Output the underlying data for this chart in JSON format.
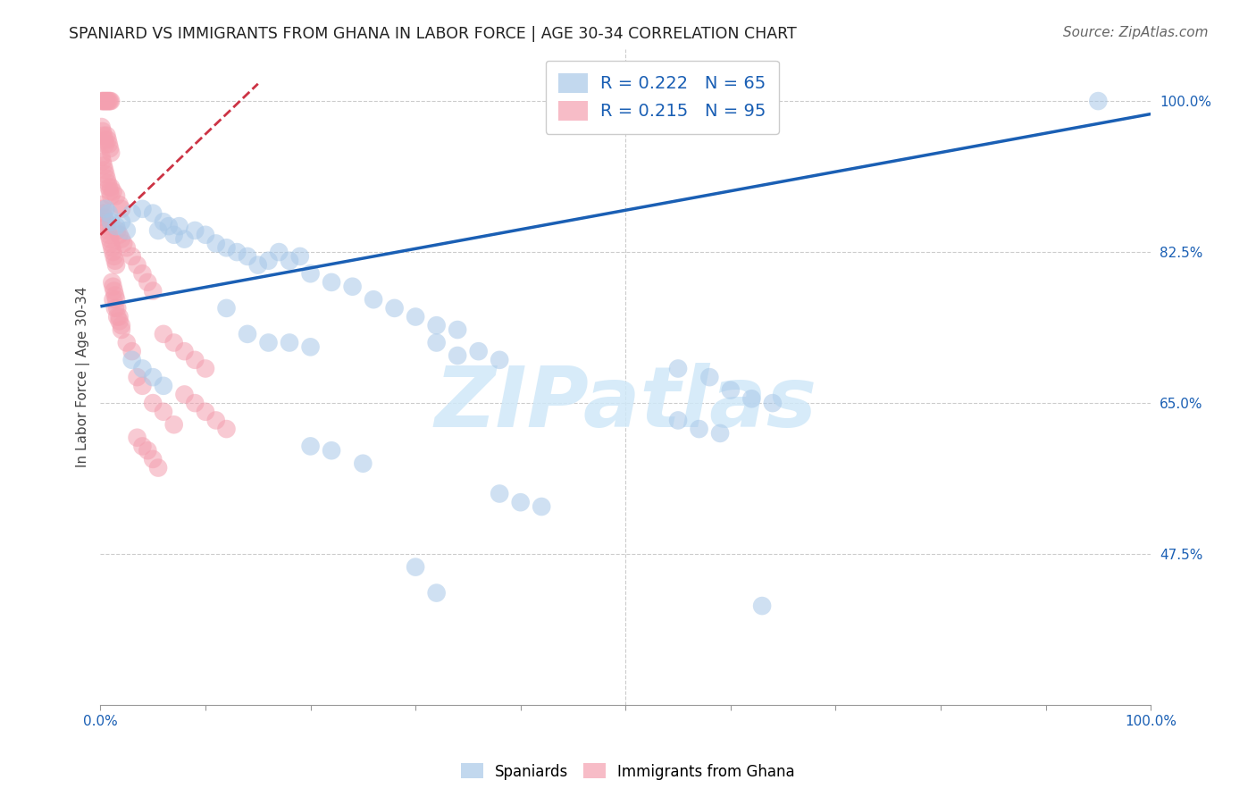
{
  "title": "SPANIARD VS IMMIGRANTS FROM GHANA IN LABOR FORCE | AGE 30-34 CORRELATION CHART",
  "source": "Source: ZipAtlas.com",
  "ylabel": "In Labor Force | Age 30-34",
  "xlim": [
    0.0,
    1.0
  ],
  "ylim": [
    0.3,
    1.06
  ],
  "yticks": [
    0.475,
    0.65,
    0.825,
    1.0
  ],
  "ytick_labels": [
    "47.5%",
    "65.0%",
    "82.5%",
    "100.0%"
  ],
  "xtick_positions": [
    0.0,
    0.1,
    0.2,
    0.3,
    0.4,
    0.5,
    0.6,
    0.7,
    0.8,
    0.9,
    1.0
  ],
  "watermark_text": "ZIPatlas",
  "spaniards_color": "#a8c8e8",
  "ghana_color": "#f4a0b0",
  "trend_spaniards_color": "#1a5fb4",
  "trend_ghana_color": "#cc3344",
  "spaniards_x": [
    0.005,
    0.008,
    0.01,
    0.015,
    0.02,
    0.025,
    0.03,
    0.04,
    0.05,
    0.055,
    0.06,
    0.065,
    0.07,
    0.075,
    0.08,
    0.09,
    0.1,
    0.11,
    0.12,
    0.13,
    0.14,
    0.15,
    0.16,
    0.17,
    0.18,
    0.19,
    0.2,
    0.22,
    0.24,
    0.26,
    0.28,
    0.3,
    0.32,
    0.34,
    0.12,
    0.14,
    0.16,
    0.18,
    0.2,
    0.32,
    0.34,
    0.36,
    0.38,
    0.55,
    0.58,
    0.6,
    0.62,
    0.64,
    0.55,
    0.57,
    0.59,
    0.03,
    0.04,
    0.05,
    0.06,
    0.2,
    0.22,
    0.25,
    0.38,
    0.4,
    0.42,
    0.3,
    0.32,
    0.63,
    0.95
  ],
  "spaniards_y": [
    0.875,
    0.87,
    0.86,
    0.855,
    0.86,
    0.85,
    0.87,
    0.875,
    0.87,
    0.85,
    0.86,
    0.855,
    0.845,
    0.855,
    0.84,
    0.85,
    0.845,
    0.835,
    0.83,
    0.825,
    0.82,
    0.81,
    0.815,
    0.825,
    0.815,
    0.82,
    0.8,
    0.79,
    0.785,
    0.77,
    0.76,
    0.75,
    0.74,
    0.735,
    0.76,
    0.73,
    0.72,
    0.72,
    0.715,
    0.72,
    0.705,
    0.71,
    0.7,
    0.69,
    0.68,
    0.665,
    0.655,
    0.65,
    0.63,
    0.62,
    0.615,
    0.7,
    0.69,
    0.68,
    0.67,
    0.6,
    0.595,
    0.58,
    0.545,
    0.535,
    0.53,
    0.46,
    0.43,
    0.415,
    1.0
  ],
  "ghana_x": [
    0.001,
    0.002,
    0.003,
    0.004,
    0.005,
    0.006,
    0.007,
    0.008,
    0.009,
    0.01,
    0.001,
    0.002,
    0.003,
    0.004,
    0.005,
    0.006,
    0.007,
    0.008,
    0.009,
    0.01,
    0.001,
    0.002,
    0.003,
    0.004,
    0.005,
    0.006,
    0.007,
    0.008,
    0.009,
    0.01,
    0.001,
    0.002,
    0.003,
    0.004,
    0.005,
    0.006,
    0.007,
    0.008,
    0.009,
    0.01,
    0.011,
    0.012,
    0.013,
    0.014,
    0.015,
    0.011,
    0.012,
    0.013,
    0.014,
    0.015,
    0.016,
    0.018,
    0.02,
    0.022,
    0.025,
    0.016,
    0.018,
    0.02,
    0.025,
    0.03,
    0.03,
    0.035,
    0.04,
    0.045,
    0.05,
    0.035,
    0.04,
    0.05,
    0.06,
    0.07,
    0.06,
    0.07,
    0.08,
    0.09,
    0.1,
    0.035,
    0.04,
    0.045,
    0.05,
    0.055,
    0.01,
    0.012,
    0.015,
    0.018,
    0.02,
    0.08,
    0.09,
    0.1,
    0.11,
    0.12,
    0.012,
    0.014,
    0.016,
    0.018,
    0.02
  ],
  "ghana_y": [
    1.0,
    1.0,
    1.0,
    1.0,
    1.0,
    1.0,
    1.0,
    1.0,
    1.0,
    1.0,
    0.97,
    0.965,
    0.96,
    0.955,
    0.95,
    0.96,
    0.955,
    0.95,
    0.945,
    0.94,
    0.935,
    0.93,
    0.925,
    0.92,
    0.915,
    0.91,
    0.905,
    0.9,
    0.895,
    0.89,
    0.88,
    0.875,
    0.87,
    0.865,
    0.86,
    0.855,
    0.85,
    0.845,
    0.84,
    0.835,
    0.83,
    0.825,
    0.82,
    0.815,
    0.81,
    0.79,
    0.785,
    0.78,
    0.775,
    0.77,
    0.85,
    0.845,
    0.84,
    0.835,
    0.83,
    0.76,
    0.75,
    0.74,
    0.72,
    0.71,
    0.82,
    0.81,
    0.8,
    0.79,
    0.78,
    0.68,
    0.67,
    0.65,
    0.64,
    0.625,
    0.73,
    0.72,
    0.71,
    0.7,
    0.69,
    0.61,
    0.6,
    0.595,
    0.585,
    0.575,
    0.9,
    0.895,
    0.89,
    0.88,
    0.875,
    0.66,
    0.65,
    0.64,
    0.63,
    0.62,
    0.77,
    0.76,
    0.75,
    0.745,
    0.735
  ],
  "sp_trend_x": [
    0.0,
    1.0
  ],
  "sp_trend_y": [
    0.762,
    0.985
  ],
  "gh_trend_x": [
    0.0,
    0.15
  ],
  "gh_trend_y": [
    0.845,
    1.02
  ],
  "legend_sp_label": "R = 0.222   N = 65",
  "legend_gh_label": "R = 0.215   N = 95",
  "bottom_sp_label": "Spaniards",
  "bottom_gh_label": "Immigrants from Ghana"
}
